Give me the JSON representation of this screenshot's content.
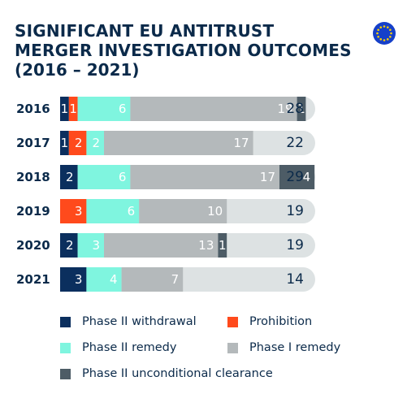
{
  "title": "SIGNIFICANT EU ANTITRUST MERGER INVESTIGATION OUTCOMES",
  "subtitle": "(2016 – 2021)",
  "colors": {
    "phase2_withdrawal": "#0b2f5e",
    "prohibition": "#ff4a1c",
    "phase2_remedy": "#7ff5df",
    "phase1_remedy": "#b4b9bb",
    "phase2_unconditional": "#4d5c66",
    "track": "#dde2e3",
    "text_dark": "#0b2a4a",
    "flag_blue": "#1640c9",
    "flag_star": "#ffd100"
  },
  "chart_data": {
    "type": "bar",
    "orientation": "horizontal",
    "stacked": true,
    "categories": [
      "2016",
      "2017",
      "2018",
      "2019",
      "2020",
      "2021"
    ],
    "series": [
      {
        "key": "phase2_withdrawal",
        "name": "Phase II withdrawal",
        "values": [
          1,
          1,
          2,
          0,
          2,
          3
        ]
      },
      {
        "key": "prohibition",
        "name": "Prohibition",
        "values": [
          1,
          2,
          0,
          3,
          0,
          0
        ]
      },
      {
        "key": "phase2_remedy",
        "name": "Phase II remedy",
        "values": [
          6,
          2,
          6,
          6,
          3,
          4
        ]
      },
      {
        "key": "phase1_remedy",
        "name": "Phase I remedy",
        "values": [
          19,
          17,
          17,
          10,
          13,
          7
        ]
      },
      {
        "key": "phase2_unconditional",
        "name": "Phase II unconditional clearance",
        "values": [
          1,
          0,
          4,
          0,
          1,
          0
        ]
      }
    ],
    "totals": [
      28,
      22,
      29,
      19,
      19,
      14
    ],
    "xlim": [
      0,
      35
    ],
    "legend_position": "bottom",
    "grid": false
  },
  "legend_order": [
    "phase2_withdrawal",
    "prohibition",
    "phase2_remedy",
    "phase1_remedy",
    "phase2_unconditional"
  ]
}
